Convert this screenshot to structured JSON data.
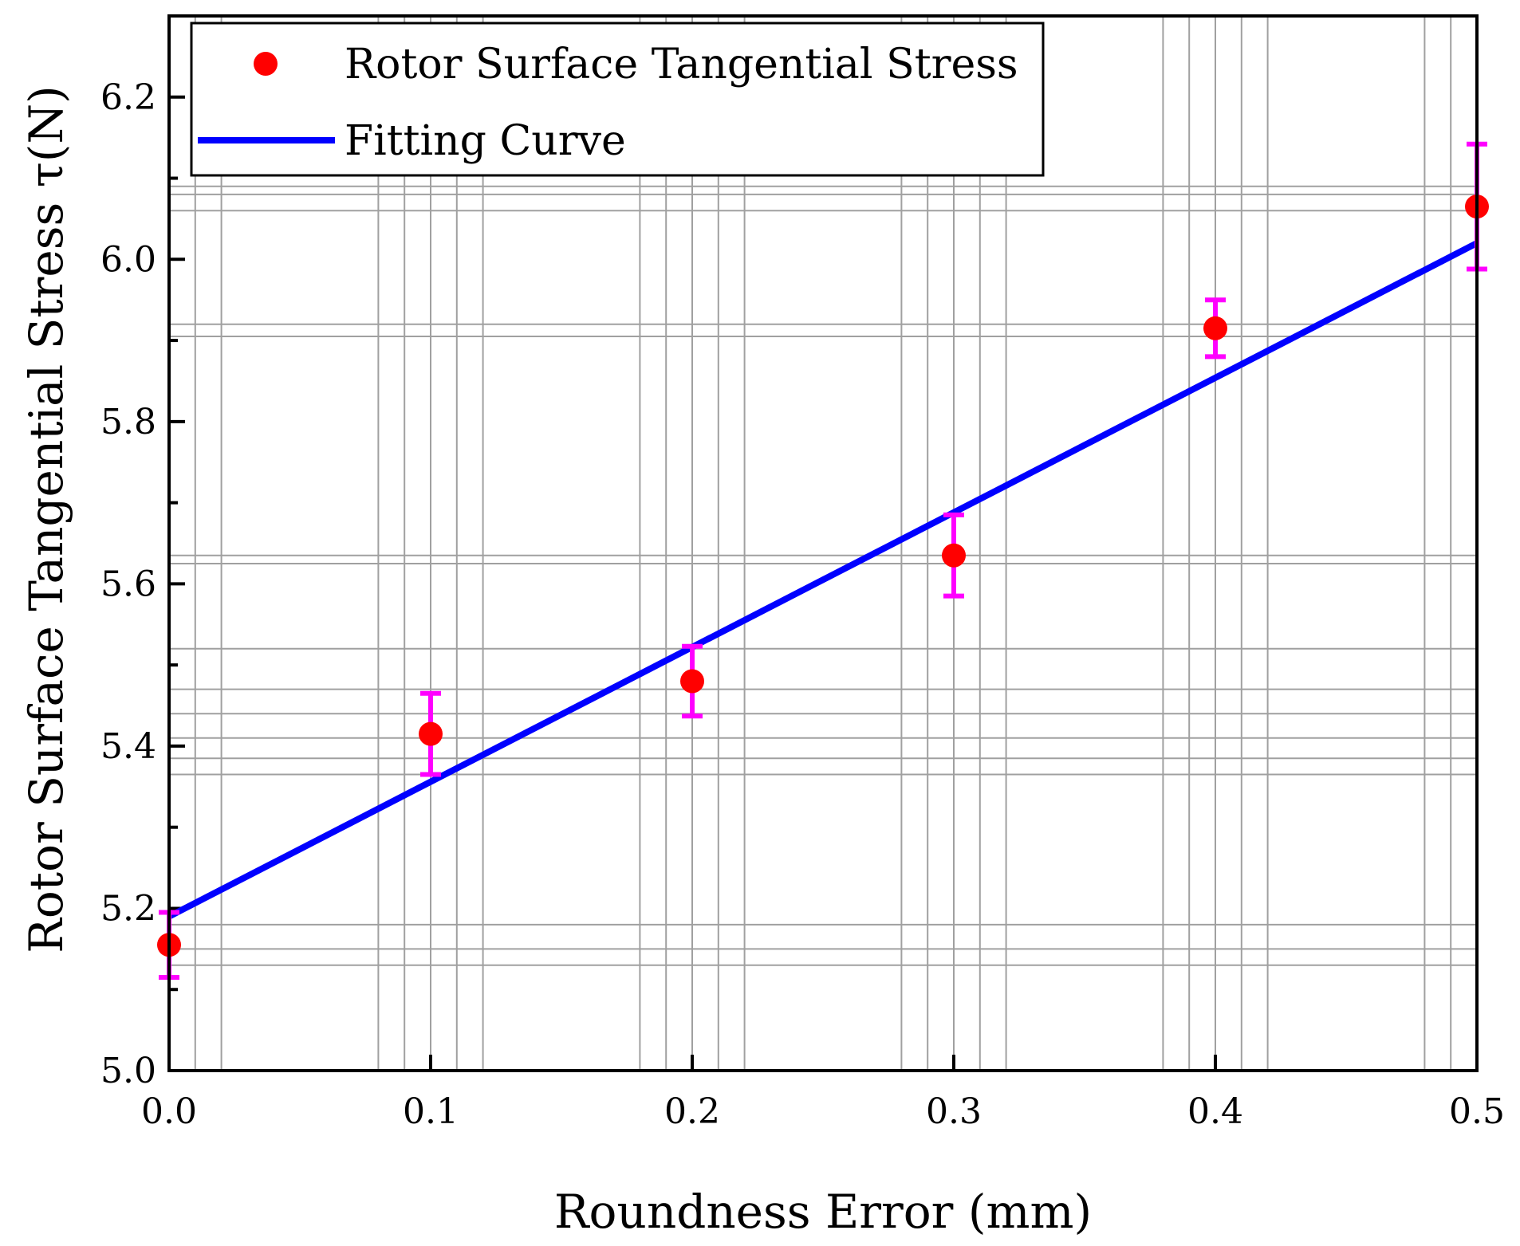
{
  "chart_data": {
    "type": "scatter",
    "title": "",
    "xlabel": "Roundness Error (mm)",
    "ylabel": "Rotor Surface Tangential Stress τ(N)",
    "xlim": [
      0.0,
      0.5
    ],
    "ylim": [
      5.0,
      6.3
    ],
    "grid": true,
    "legend_position": "top-left",
    "x_ticks": [
      "0.0",
      "0.1",
      "0.2",
      "0.3",
      "0.4",
      "0.5"
    ],
    "y_ticks": [
      "5.0",
      "5.2",
      "5.4",
      "5.6",
      "5.8",
      "6.0",
      "6.2"
    ],
    "series": [
      {
        "name": "Rotor Surface Tangential Stress",
        "kind": "scatter-errorbar",
        "color": "#ff0000",
        "error_color": "#ff00ff",
        "x": [
          0.0,
          0.1,
          0.2,
          0.3,
          0.4,
          0.5
        ],
        "y": [
          5.155,
          5.415,
          5.48,
          5.635,
          5.915,
          6.065
        ],
        "error": [
          0.04,
          0.05,
          0.043,
          0.05,
          0.035,
          0.077
        ]
      },
      {
        "name": "Fitting Curve",
        "kind": "line",
        "color": "#0000ff",
        "x": [
          0.0,
          0.5
        ],
        "y": [
          5.19,
          6.02
        ]
      }
    ]
  }
}
